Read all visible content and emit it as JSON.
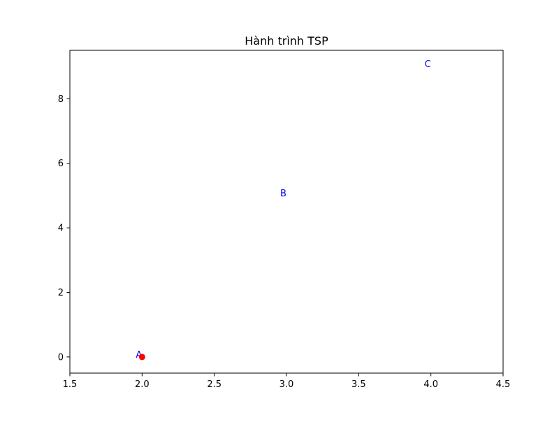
{
  "chart_data": {
    "type": "scatter",
    "title": "Hành trình TSP",
    "xlabel": "",
    "ylabel": "",
    "xlim": [
      1.5,
      4.5
    ],
    "ylim": [
      -0.5,
      9.5
    ],
    "x_ticks": [
      1.5,
      2.0,
      2.5,
      3.0,
      3.5,
      4.0,
      4.5
    ],
    "x_tick_labels": [
      "1.5",
      "2.0",
      "2.5",
      "3.0",
      "3.5",
      "4.0",
      "4.5"
    ],
    "y_ticks": [
      0,
      2,
      4,
      6,
      8
    ],
    "y_tick_labels": [
      "0",
      "2",
      "4",
      "6",
      "8"
    ],
    "grid": false,
    "points": [
      {
        "label": "A",
        "x": 2,
        "y": 0
      },
      {
        "label": "B",
        "x": 3,
        "y": 5
      },
      {
        "label": "C",
        "x": 4,
        "y": 9
      }
    ],
    "highlight": {
      "x": 2,
      "y": 0
    },
    "marker_color": "#ff0000",
    "label_color": "#0000ff"
  }
}
